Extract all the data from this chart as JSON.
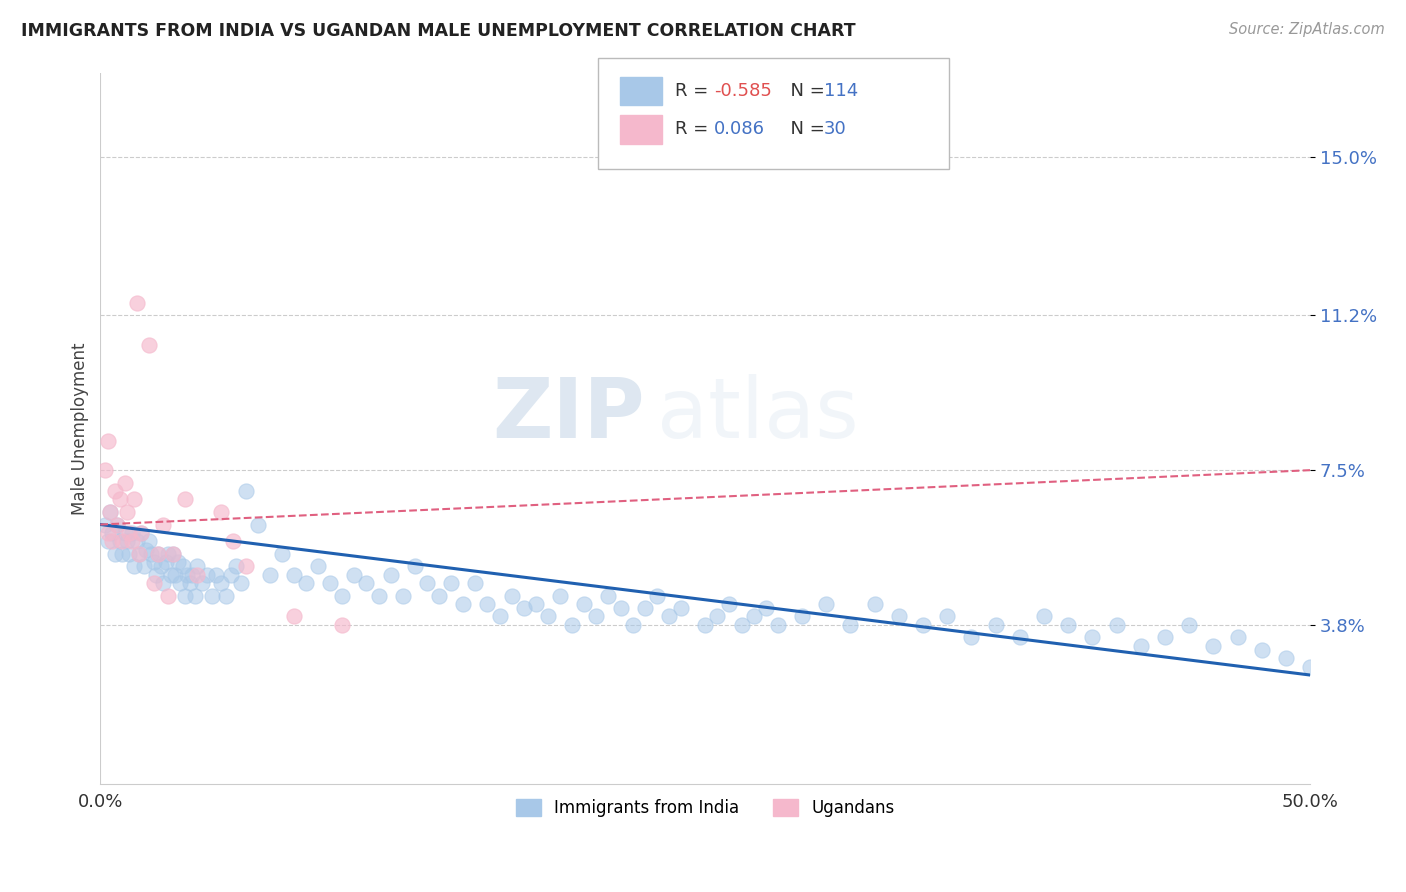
{
  "title": "IMMIGRANTS FROM INDIA VS UGANDAN MALE UNEMPLOYMENT CORRELATION CHART",
  "source": "Source: ZipAtlas.com",
  "ylabel": "Male Unemployment",
  "ytick_labels": [
    "3.8%",
    "7.5%",
    "11.2%",
    "15.0%"
  ],
  "ytick_values": [
    0.038,
    0.075,
    0.112,
    0.15
  ],
  "xlim": [
    0.0,
    0.5
  ],
  "ylim": [
    0.0,
    0.17
  ],
  "legend_entry1": {
    "label": "Immigrants from India",
    "color": "#a8c8e8",
    "R": "-0.585",
    "N": "114"
  },
  "legend_entry2": {
    "label": "Ugandans",
    "color": "#f5b8cc",
    "R": "0.086",
    "N": "30"
  },
  "blue_scatter": "#a8c8e8",
  "pink_scatter": "#f5b8cc",
  "trend_blue": "#2060b0",
  "trend_pink": "#e06080",
  "watermark_zip": "ZIP",
  "watermark_atlas": "atlas",
  "india_points": [
    [
      0.002,
      0.062
    ],
    [
      0.003,
      0.058
    ],
    [
      0.004,
      0.065
    ],
    [
      0.005,
      0.06
    ],
    [
      0.006,
      0.055
    ],
    [
      0.007,
      0.062
    ],
    [
      0.008,
      0.058
    ],
    [
      0.009,
      0.055
    ],
    [
      0.01,
      0.06
    ],
    [
      0.011,
      0.058
    ],
    [
      0.012,
      0.055
    ],
    [
      0.013,
      0.06
    ],
    [
      0.014,
      0.052
    ],
    [
      0.015,
      0.058
    ],
    [
      0.016,
      0.055
    ],
    [
      0.017,
      0.06
    ],
    [
      0.018,
      0.052
    ],
    [
      0.019,
      0.056
    ],
    [
      0.02,
      0.058
    ],
    [
      0.021,
      0.055
    ],
    [
      0.022,
      0.053
    ],
    [
      0.023,
      0.05
    ],
    [
      0.024,
      0.055
    ],
    [
      0.025,
      0.052
    ],
    [
      0.026,
      0.048
    ],
    [
      0.027,
      0.053
    ],
    [
      0.028,
      0.055
    ],
    [
      0.029,
      0.05
    ],
    [
      0.03,
      0.055
    ],
    [
      0.031,
      0.05
    ],
    [
      0.032,
      0.053
    ],
    [
      0.033,
      0.048
    ],
    [
      0.034,
      0.052
    ],
    [
      0.035,
      0.045
    ],
    [
      0.036,
      0.05
    ],
    [
      0.037,
      0.048
    ],
    [
      0.038,
      0.05
    ],
    [
      0.039,
      0.045
    ],
    [
      0.04,
      0.052
    ],
    [
      0.042,
      0.048
    ],
    [
      0.044,
      0.05
    ],
    [
      0.046,
      0.045
    ],
    [
      0.048,
      0.05
    ],
    [
      0.05,
      0.048
    ],
    [
      0.052,
      0.045
    ],
    [
      0.054,
      0.05
    ],
    [
      0.056,
      0.052
    ],
    [
      0.058,
      0.048
    ],
    [
      0.06,
      0.07
    ],
    [
      0.065,
      0.062
    ],
    [
      0.07,
      0.05
    ],
    [
      0.075,
      0.055
    ],
    [
      0.08,
      0.05
    ],
    [
      0.085,
      0.048
    ],
    [
      0.09,
      0.052
    ],
    [
      0.095,
      0.048
    ],
    [
      0.1,
      0.045
    ],
    [
      0.105,
      0.05
    ],
    [
      0.11,
      0.048
    ],
    [
      0.115,
      0.045
    ],
    [
      0.12,
      0.05
    ],
    [
      0.125,
      0.045
    ],
    [
      0.13,
      0.052
    ],
    [
      0.135,
      0.048
    ],
    [
      0.14,
      0.045
    ],
    [
      0.145,
      0.048
    ],
    [
      0.15,
      0.043
    ],
    [
      0.155,
      0.048
    ],
    [
      0.16,
      0.043
    ],
    [
      0.165,
      0.04
    ],
    [
      0.17,
      0.045
    ],
    [
      0.175,
      0.042
    ],
    [
      0.18,
      0.043
    ],
    [
      0.185,
      0.04
    ],
    [
      0.19,
      0.045
    ],
    [
      0.195,
      0.038
    ],
    [
      0.2,
      0.043
    ],
    [
      0.205,
      0.04
    ],
    [
      0.21,
      0.045
    ],
    [
      0.215,
      0.042
    ],
    [
      0.22,
      0.038
    ],
    [
      0.225,
      0.042
    ],
    [
      0.23,
      0.045
    ],
    [
      0.235,
      0.04
    ],
    [
      0.24,
      0.042
    ],
    [
      0.25,
      0.038
    ],
    [
      0.255,
      0.04
    ],
    [
      0.26,
      0.043
    ],
    [
      0.265,
      0.038
    ],
    [
      0.27,
      0.04
    ],
    [
      0.275,
      0.042
    ],
    [
      0.28,
      0.038
    ],
    [
      0.29,
      0.04
    ],
    [
      0.3,
      0.043
    ],
    [
      0.31,
      0.038
    ],
    [
      0.32,
      0.043
    ],
    [
      0.33,
      0.04
    ],
    [
      0.34,
      0.038
    ],
    [
      0.35,
      0.04
    ],
    [
      0.36,
      0.035
    ],
    [
      0.37,
      0.038
    ],
    [
      0.38,
      0.035
    ],
    [
      0.39,
      0.04
    ],
    [
      0.4,
      0.038
    ],
    [
      0.41,
      0.035
    ],
    [
      0.42,
      0.038
    ],
    [
      0.43,
      0.033
    ],
    [
      0.44,
      0.035
    ],
    [
      0.45,
      0.038
    ],
    [
      0.46,
      0.033
    ],
    [
      0.47,
      0.035
    ],
    [
      0.48,
      0.032
    ],
    [
      0.49,
      0.03
    ],
    [
      0.5,
      0.028
    ]
  ],
  "uganda_points": [
    [
      0.003,
      0.06
    ],
    [
      0.004,
      0.065
    ],
    [
      0.005,
      0.058
    ],
    [
      0.006,
      0.07
    ],
    [
      0.007,
      0.062
    ],
    [
      0.008,
      0.068
    ],
    [
      0.009,
      0.058
    ],
    [
      0.01,
      0.072
    ],
    [
      0.011,
      0.065
    ],
    [
      0.012,
      0.06
    ],
    [
      0.013,
      0.058
    ],
    [
      0.014,
      0.068
    ],
    [
      0.015,
      0.115
    ],
    [
      0.016,
      0.055
    ],
    [
      0.017,
      0.06
    ],
    [
      0.02,
      0.105
    ],
    [
      0.022,
      0.048
    ],
    [
      0.024,
      0.055
    ],
    [
      0.026,
      0.062
    ],
    [
      0.028,
      0.045
    ],
    [
      0.03,
      0.055
    ],
    [
      0.035,
      0.068
    ],
    [
      0.04,
      0.05
    ],
    [
      0.05,
      0.065
    ],
    [
      0.055,
      0.058
    ],
    [
      0.06,
      0.052
    ],
    [
      0.08,
      0.04
    ],
    [
      0.1,
      0.038
    ],
    [
      0.002,
      0.075
    ],
    [
      0.003,
      0.082
    ]
  ],
  "india_trend_x": [
    0.0,
    0.5
  ],
  "india_trend_y": [
    0.062,
    0.026
  ],
  "uganda_trend_x": [
    0.0,
    0.5
  ],
  "uganda_trend_y": [
    0.062,
    0.075
  ]
}
